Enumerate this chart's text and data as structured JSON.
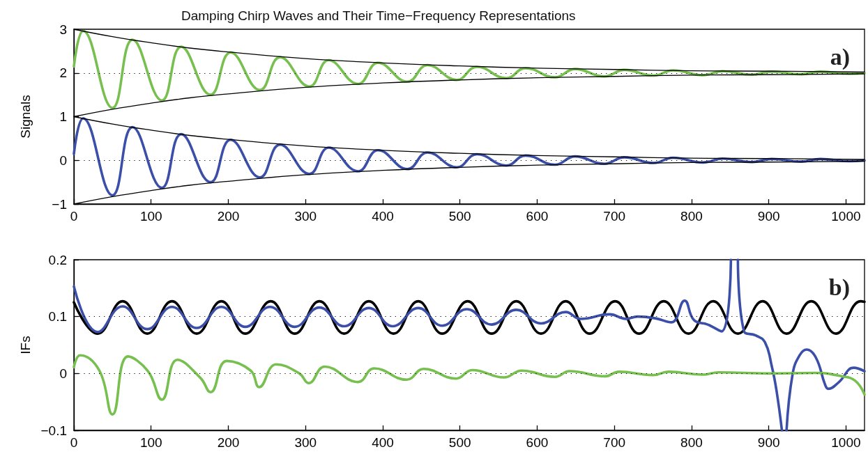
{
  "chart_data": [
    {
      "type": "line",
      "title": "Damping Chirp Waves and Their Time−Frequency Representations",
      "ylabel": "Signals",
      "annotations": [
        "a)"
      ],
      "marker": "none",
      "xlim": [
        0,
        1024
      ],
      "xticks": [
        0,
        100,
        200,
        300,
        400,
        500,
        600,
        700,
        800,
        900,
        1000
      ],
      "ylim": [
        -1,
        3
      ],
      "yticks": [
        {
          "value": -1,
          "label": "−1"
        },
        0,
        1,
        2,
        3
      ],
      "ref_lines": [
        {
          "axis": "y",
          "value": 2,
          "color": "#000000",
          "line_style": "dotted"
        },
        {
          "axis": "y",
          "value": 0,
          "color": "#000000",
          "line_style": "dotted"
        }
      ],
      "series": [
        {
          "color": "#77bf4f",
          "x": [
            0,
            12,
            50,
            76,
            114,
            139,
            177,
            203,
            241,
            267,
            305,
            330,
            368,
            394,
            432,
            458,
            496,
            522,
            560,
            585,
            623,
            649,
            687,
            713,
            751,
            776,
            815,
            840,
            878,
            904,
            942,
            967,
            1005,
            1024
          ],
          "values": [
            2.15,
            2.96,
            1.2,
            2.76,
            1.37,
            2.6,
            1.5,
            2.47,
            1.61,
            2.36,
            1.69,
            2.29,
            1.75,
            2.23,
            1.8,
            2.18,
            1.84,
            2.14,
            1.88,
            2.11,
            1.9,
            2.09,
            1.92,
            2.07,
            1.94,
            2.06,
            1.95,
            2.04,
            1.96,
            2.03,
            1.97,
            2.03,
            1.98,
            2
          ]
        },
        {
          "color": "#3b4fa8",
          "x": [
            0,
            12,
            50,
            76,
            114,
            139,
            177,
            203,
            241,
            267,
            305,
            330,
            368,
            394,
            432,
            458,
            496,
            522,
            560,
            585,
            623,
            649,
            687,
            713,
            751,
            776,
            815,
            840,
            878,
            904,
            942,
            967,
            1005,
            1024
          ],
          "values": [
            0.15,
            0.96,
            -0.8,
            0.76,
            -0.63,
            0.6,
            -0.5,
            0.47,
            -0.39,
            0.36,
            -0.31,
            0.29,
            -0.25,
            0.23,
            -0.2,
            0.18,
            -0.16,
            0.14,
            -0.12,
            0.11,
            -0.1,
            0.09,
            -0.08,
            0.07,
            -0.06,
            0.06,
            -0.05,
            0.04,
            -0.04,
            0.03,
            -0.03,
            0.03,
            -0.02,
            0
          ]
        },
        {
          "color": "#000000",
          "x": [
            0,
            50,
            100,
            150,
            200,
            300,
            400,
            500,
            600,
            700,
            800,
            900,
            1024
          ],
          "values": [
            3,
            2.83,
            2.69,
            2.57,
            2.48,
            2.33,
            2.23,
            2.16,
            2.11,
            2.08,
            2.05,
            2.04,
            2.02
          ]
        },
        {
          "color": "#000000",
          "x": [
            0,
            50,
            100,
            150,
            200,
            300,
            400,
            500,
            600,
            700,
            800,
            900,
            1024
          ],
          "values": [
            1,
            1.17,
            1.31,
            1.43,
            1.52,
            1.67,
            1.77,
            1.84,
            1.89,
            1.92,
            1.95,
            1.96,
            1.98
          ]
        },
        {
          "color": "#000000",
          "x": [
            0,
            50,
            100,
            150,
            200,
            300,
            400,
            500,
            600,
            700,
            800,
            900,
            1024
          ],
          "values": [
            1,
            0.83,
            0.69,
            0.57,
            0.48,
            0.33,
            0.23,
            0.16,
            0.11,
            0.08,
            0.05,
            0.04,
            0.02
          ]
        },
        {
          "color": "#000000",
          "x": [
            0,
            50,
            100,
            150,
            200,
            300,
            400,
            500,
            600,
            700,
            800,
            900,
            1024
          ],
          "values": [
            -1,
            -0.83,
            -0.69,
            -0.57,
            -0.48,
            -0.33,
            -0.23,
            -0.16,
            -0.11,
            -0.08,
            -0.05,
            -0.04,
            -0.02
          ]
        }
      ]
    },
    {
      "type": "line",
      "ylabel": "IFs",
      "annotations": [
        "b)"
      ],
      "marker": "none",
      "xlim": [
        0,
        1024
      ],
      "xticks": [
        0,
        100,
        200,
        300,
        400,
        500,
        600,
        700,
        800,
        900,
        1000
      ],
      "ylim": [
        -0.1,
        0.2
      ],
      "yticks": [
        {
          "value": -0.1,
          "label": "−0.1"
        },
        0,
        0.1,
        0.2
      ],
      "ref_lines": [
        {
          "axis": "y",
          "value": 0.1,
          "color": "#000000",
          "line_style": "dotted"
        },
        {
          "axis": "y",
          "value": 0,
          "color": "#000000",
          "line_style": "dotted"
        }
      ],
      "series": [
        {
          "color": "#000000",
          "x": [
            0,
            31,
            63,
            95,
            127,
            159,
            191,
            222,
            255,
            286,
            318,
            350,
            382,
            414,
            446,
            477,
            510,
            541,
            573,
            605,
            637,
            668,
            701,
            732,
            764,
            796,
            828,
            860,
            892,
            923,
            955,
            987,
            1019,
            1024
          ],
          "values": [
            0.125,
            0.07,
            0.127,
            0.07,
            0.127,
            0.07,
            0.127,
            0.07,
            0.127,
            0.07,
            0.127,
            0.07,
            0.127,
            0.07,
            0.127,
            0.07,
            0.127,
            0.07,
            0.127,
            0.07,
            0.127,
            0.07,
            0.127,
            0.07,
            0.127,
            0.07,
            0.127,
            0.07,
            0.127,
            0.07,
            0.127,
            0.07,
            0.127,
            0.126
          ]
        },
        {
          "color": "#3b4fa8",
          "x": [
            0,
            31,
            63,
            95,
            127,
            159,
            191,
            222,
            254,
            286,
            318,
            350,
            382,
            413,
            446,
            477,
            509,
            541,
            573,
            605,
            637,
            656,
            694,
            715,
            730,
            753,
            774,
            791,
            803,
            821,
            839,
            851,
            855,
            860,
            868,
            883,
            895,
            904,
            910,
            917,
            920,
            923,
            931,
            940,
            949,
            961,
            973,
            977,
            991,
            1010,
            1024
          ],
          "values": [
            0.153,
            0.073,
            0.118,
            0.078,
            0.117,
            0.08,
            0.117,
            0.082,
            0.117,
            0.082,
            0.116,
            0.083,
            0.115,
            0.083,
            0.115,
            0.084,
            0.113,
            0.086,
            0.112,
            0.088,
            0.108,
            0.096,
            0.104,
            0.096,
            0.1,
            0.097,
            0.09,
            0.128,
            0.094,
            0.086,
            0.074,
            0.2,
            null,
            0.2,
            0.074,
            0.067,
            0.055,
            0.012,
            -0.03,
            -0.1,
            null,
            -0.1,
            0,
            0.032,
            0.042,
            0.028,
            -0.02,
            -0.027,
            -0.015,
            0.01,
            0.004
          ]
        },
        {
          "color": "#77bf4f",
          "x": [
            0,
            8,
            33,
            50,
            70,
            96,
            114,
            134,
            164,
            177,
            198,
            229,
            240,
            262,
            292,
            304,
            325,
            368,
            389,
            431,
            453,
            495,
            516,
            557,
            580,
            623,
            642,
            688,
            706,
            750,
            770,
            815,
            835,
            900,
            960,
            995,
            1012,
            1024
          ],
          "values": [
            0.011,
            0.032,
            0.005,
            -0.072,
            0.03,
            0.004,
            -0.046,
            0.024,
            -0.008,
            -0.033,
            0.022,
            0.005,
            -0.024,
            0.016,
            0,
            -0.017,
            0.012,
            -0.015,
            0.009,
            -0.011,
            0.008,
            -0.009,
            0.006,
            -0.007,
            0.005,
            -0.006,
            0.004,
            -0.005,
            0.003,
            -0.003,
            0.003,
            -0.002,
            0.002,
            0,
            0.001,
            -0.005,
            -0.013,
            -0.037
          ]
        }
      ]
    }
  ]
}
